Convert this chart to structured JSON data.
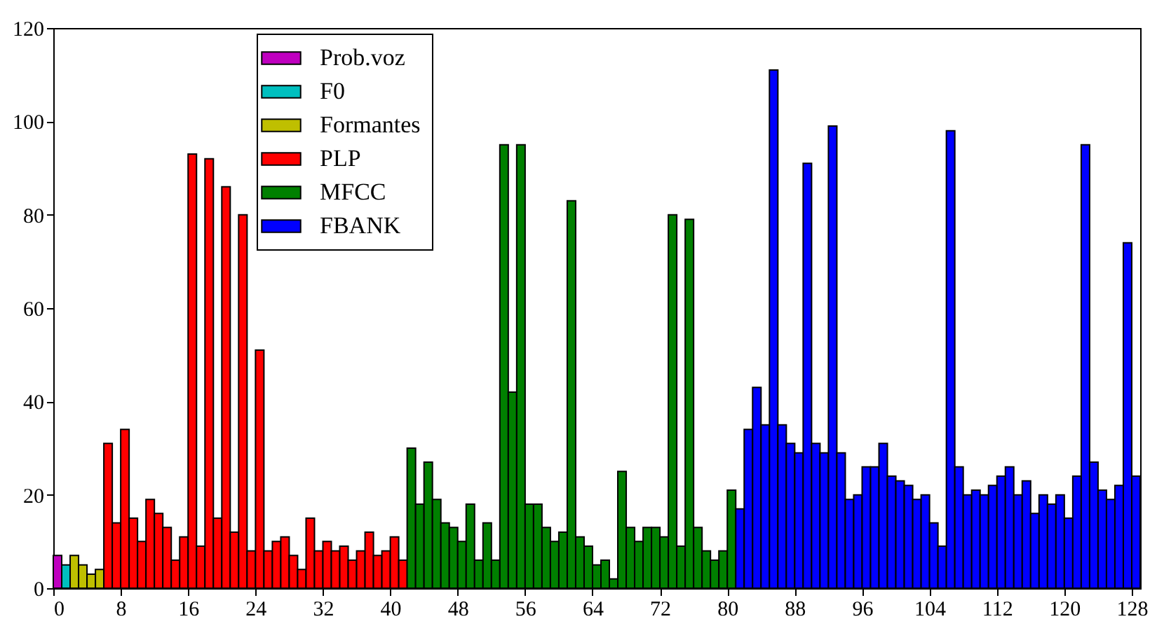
{
  "chart_data": {
    "type": "bar",
    "xlim": [
      0,
      129
    ],
    "xticks": [
      0,
      8,
      16,
      24,
      32,
      40,
      48,
      56,
      64,
      72,
      80,
      88,
      96,
      104,
      112,
      120,
      128
    ],
    "ylim": [
      0,
      120
    ],
    "yticks": [
      0,
      20,
      40,
      60,
      80,
      100,
      120
    ],
    "grid": false,
    "legend": "top left",
    "series": [
      {
        "name": "Prob.voz",
        "color": "#bf00bf",
        "x": [
          0
        ],
        "values": [
          7
        ]
      },
      {
        "name": "F0",
        "color": "#00bfbf",
        "x": [
          1
        ],
        "values": [
          5
        ]
      },
      {
        "name": "Formantes",
        "color": "#bfbf00",
        "x": [
          2,
          3,
          4,
          5
        ],
        "values": [
          7,
          5,
          3,
          4
        ]
      },
      {
        "name": "PLP",
        "color": "#ff0000",
        "x": [
          6,
          7,
          8,
          9,
          10,
          11,
          12,
          13,
          14,
          15,
          16,
          17,
          18,
          19,
          20,
          21,
          22,
          23,
          24,
          25,
          26,
          27,
          28,
          29,
          30,
          31,
          32,
          33,
          34,
          35,
          36,
          37,
          38,
          39,
          40,
          41
        ],
        "values": [
          31,
          14,
          34,
          15,
          10,
          19,
          16,
          13,
          6,
          11,
          93,
          9,
          92,
          15,
          86,
          12,
          80,
          8,
          51,
          8,
          10,
          11,
          7,
          4,
          15,
          8,
          10,
          8,
          9,
          6,
          8,
          12,
          7,
          8,
          11,
          6
        ]
      },
      {
        "name": "MFCC",
        "color": "#008000",
        "x": [
          42,
          43,
          44,
          45,
          46,
          47,
          48,
          49,
          50,
          51,
          52,
          53,
          54,
          55,
          56,
          57,
          58,
          59,
          60,
          61,
          62,
          63,
          64,
          65,
          66,
          67,
          68,
          69,
          70,
          71,
          72,
          73,
          74,
          75,
          76,
          77,
          78,
          79,
          80
        ],
        "values": [
          30,
          18,
          27,
          19,
          14,
          13,
          10,
          18,
          6,
          14,
          6,
          95,
          42,
          95,
          18,
          18,
          13,
          10,
          12,
          83,
          11,
          9,
          5,
          6,
          2,
          25,
          13,
          10,
          13,
          13,
          11,
          80,
          9,
          79,
          13,
          8,
          6,
          8,
          21
        ]
      },
      {
        "name": "FBANK",
        "color": "#0000ff",
        "x": [
          81,
          82,
          83,
          84,
          85,
          86,
          87,
          88,
          89,
          90,
          91,
          92,
          93,
          94,
          95,
          96,
          97,
          98,
          99,
          100,
          101,
          102,
          103,
          104,
          105,
          106,
          107,
          108,
          109,
          110,
          111,
          112,
          113,
          114,
          115,
          116,
          117,
          118,
          119,
          120,
          121,
          122,
          123,
          124,
          125,
          126,
          127,
          128
        ],
        "values": [
          17,
          34,
          43,
          35,
          111,
          35,
          31,
          29,
          91,
          31,
          29,
          99,
          29,
          19,
          20,
          26,
          26,
          31,
          24,
          23,
          22,
          19,
          20,
          14,
          9,
          98,
          26,
          20,
          21,
          20,
          22,
          24,
          26,
          20,
          23,
          16,
          20,
          18,
          20,
          15,
          24,
          95,
          27,
          21,
          19,
          22,
          74,
          24
        ]
      }
    ]
  }
}
